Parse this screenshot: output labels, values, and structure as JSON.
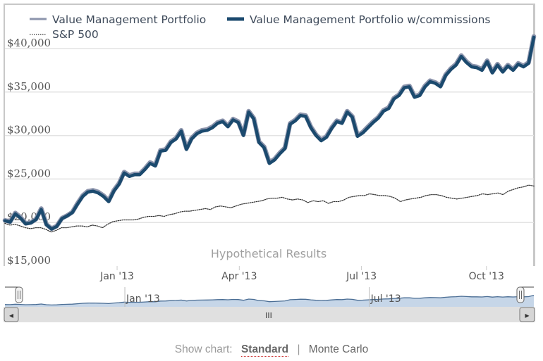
{
  "chart_data": {
    "type": "line",
    "title": "",
    "credits_text": "Hypothetical Results",
    "xlabel": "",
    "ylabel": "",
    "ylim": [
      15000,
      41500
    ],
    "y_ticks": [
      {
        "value": 15000,
        "label": "$15,000"
      },
      {
        "value": 20000,
        "label": "$20,000"
      },
      {
        "value": 25000,
        "label": "$25,000"
      },
      {
        "value": 30000,
        "label": "$30,000"
      },
      {
        "value": 35000,
        "label": "$35,000"
      },
      {
        "value": 40000,
        "label": "$40,000"
      }
    ],
    "x_range_weeks": [
      0,
      58
    ],
    "x_ticks": [
      {
        "week": 12.3,
        "label": "Jan '13"
      },
      {
        "week": 25.7,
        "label": "Apr '13"
      },
      {
        "week": 39.1,
        "label": "Jul '13"
      },
      {
        "week": 52.8,
        "label": "Oct '13"
      }
    ],
    "grid": true,
    "legend": {
      "position": "top-left",
      "items": [
        {
          "name": "Value Management Portfolio",
          "color": "#8c94ac",
          "style": "solid"
        },
        {
          "name": "Value Management Portfolio w/commissions",
          "color": "#1b4a6e",
          "style": "solid-thick"
        },
        {
          "name": "S&P 500",
          "color": "#333333",
          "style": "dotted"
        }
      ]
    },
    "series": [
      {
        "name": "Value Management Portfolio",
        "color": "#8c94ac",
        "values": [
          20250,
          20100,
          21100,
          20600,
          19900,
          20000,
          20400,
          21600,
          19800,
          19300,
          19600,
          20500,
          20800,
          21200,
          22200,
          23100,
          23600,
          23700,
          23500,
          23100,
          22500,
          23700,
          24500,
          25800,
          25400,
          25600,
          25600,
          26200,
          26900,
          26600,
          28300,
          28400,
          29300,
          29700,
          30600,
          28500,
          29700,
          30300,
          30600,
          30700,
          31000,
          31500,
          31700,
          31100,
          31900,
          31600,
          30100,
          32800,
          32000,
          29300,
          28700,
          26900,
          27300,
          28000,
          28600,
          31400,
          31800,
          32400,
          32300,
          31000,
          30100,
          29500,
          29900,
          30900,
          31700,
          31500,
          32800,
          32200,
          30000,
          30400,
          31000,
          31600,
          32100,
          32900,
          33200,
          34300,
          34700,
          35600,
          35700,
          34500,
          34700,
          35700,
          36300,
          36100,
          35700,
          37000,
          37700,
          38200,
          39200,
          38500,
          38000,
          37900,
          37600,
          38600,
          37300,
          38200,
          37400,
          38100,
          37600,
          38300,
          38000,
          38400,
          41400
        ]
      },
      {
        "name": "Value Management Portfolio w/commissions",
        "color": "#1b4a6e",
        "values": [
          20200,
          20050,
          21000,
          20500,
          19850,
          19950,
          20350,
          21500,
          19750,
          19250,
          19550,
          20450,
          20750,
          21150,
          22100,
          23000,
          23500,
          23600,
          23400,
          23000,
          22400,
          23600,
          24400,
          25700,
          25300,
          25500,
          25500,
          26100,
          26800,
          26500,
          28200,
          28300,
          29200,
          29600,
          30500,
          28400,
          29600,
          30200,
          30500,
          30600,
          30900,
          31400,
          31600,
          31000,
          31800,
          31500,
          30000,
          32700,
          31900,
          29200,
          28600,
          26800,
          27200,
          27900,
          28500,
          31300,
          31700,
          32300,
          32200,
          30900,
          30000,
          29400,
          29800,
          30800,
          31600,
          31400,
          32700,
          32100,
          29900,
          30300,
          30900,
          31500,
          32000,
          32800,
          33100,
          34200,
          34600,
          35500,
          35600,
          34400,
          34600,
          35600,
          36200,
          36000,
          35600,
          36900,
          37600,
          38100,
          39100,
          38400,
          37900,
          37800,
          37500,
          38500,
          37200,
          38100,
          37300,
          38000,
          37500,
          38200,
          37900,
          38300,
          41300
        ]
      },
      {
        "name": "S&P 500",
        "color": "#333333",
        "values": [
          19900,
          19700,
          19800,
          19600,
          19400,
          19300,
          19400,
          19400,
          19200,
          18900,
          19100,
          19400,
          19400,
          19500,
          19600,
          19600,
          19500,
          19700,
          19600,
          19400,
          19800,
          20100,
          20200,
          20300,
          20300,
          20300,
          20400,
          20600,
          20700,
          20700,
          20800,
          20700,
          20900,
          21000,
          21200,
          21300,
          21300,
          21400,
          21500,
          21600,
          21500,
          21800,
          21900,
          21800,
          21700,
          21900,
          22100,
          22200,
          22300,
          22400,
          22500,
          22700,
          22800,
          22800,
          22900,
          22700,
          22600,
          22700,
          22600,
          22300,
          22500,
          22400,
          22500,
          22200,
          22400,
          22400,
          22600,
          22900,
          23000,
          23100,
          23100,
          23300,
          23200,
          23100,
          23100,
          23000,
          22800,
          22400,
          22600,
          22700,
          22800,
          22900,
          23100,
          23200,
          23200,
          23100,
          22900,
          22800,
          22700,
          22800,
          22900,
          23000,
          23100,
          23300,
          23200,
          23300,
          23400,
          23200,
          23600,
          23800,
          24000,
          24100,
          24300,
          24200
        ]
      }
    ],
    "navigator": {
      "x_ticks": [
        {
          "week": 12.3,
          "label": "Jan '13"
        },
        {
          "week": 39.1,
          "label": "Jul '13"
        }
      ],
      "fill_color": "#c6d6e8",
      "line_color": "#4a6d94",
      "selection_start_fraction": 0.0,
      "selection_end_fraction": 1.0
    }
  },
  "scrollbar": {
    "left_arrow": "◂",
    "right_arrow": "▸",
    "grip": "III"
  },
  "show_chart": {
    "label": "Show chart:",
    "options": [
      {
        "label": "Standard",
        "active": true
      },
      {
        "label": "Monte Carlo",
        "active": false
      }
    ],
    "separator": "|"
  }
}
